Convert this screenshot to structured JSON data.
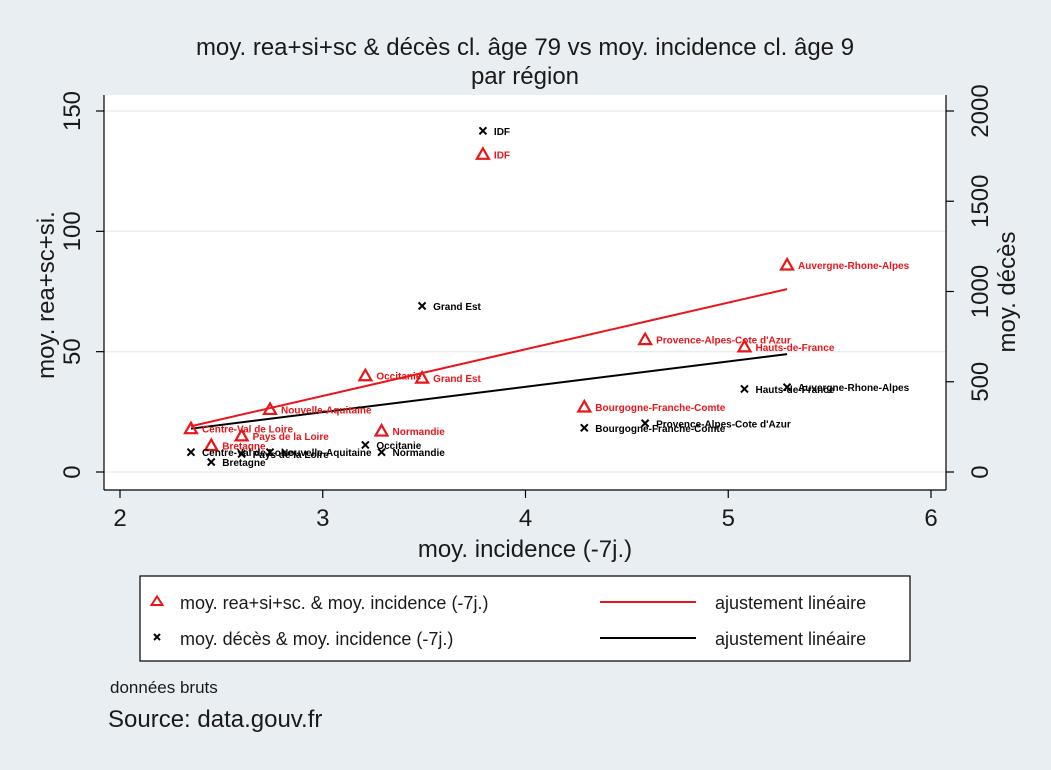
{
  "chart_data": {
    "type": "scatter",
    "title": "moy. rea+si+sc & décès cl. âge 79 vs moy. incidence cl. âge 9",
    "subtitle": "par région",
    "xlabel": "moy. incidence (-7j.)",
    "ylabel_left": "moy. rea+sc+si.",
    "ylabel_right": "moy. décès",
    "xlim": [
      2,
      6
    ],
    "x_ticks": [
      "2",
      "3",
      "4",
      "5",
      "6"
    ],
    "ylim_left": [
      0,
      150
    ],
    "y_ticks_left": [
      "0",
      "50",
      "100",
      "150"
    ],
    "ylim_right": [
      0,
      2000
    ],
    "y_ticks_right": [
      "0",
      "500",
      "1000",
      "1500",
      "2000"
    ],
    "grid": true,
    "legend_placement": "bottom",
    "series": [
      {
        "name": "moy. rea+si+sc. & moy. incidence (-7j.)",
        "axis": "left",
        "marker": "triangle",
        "color": "#e8161b",
        "points": [
          {
            "label": "IDF",
            "x": 3.79,
            "y": 132
          },
          {
            "label": "Auvergne-Rhone-Alpes",
            "x": 5.29,
            "y": 86
          },
          {
            "label": "Provence-Alpes-Cote d'Azur",
            "x": 4.59,
            "y": 55
          },
          {
            "label": "Hauts-de-France",
            "x": 5.08,
            "y": 52
          },
          {
            "label": "Occitanie",
            "x": 3.21,
            "y": 40
          },
          {
            "label": "Grand Est",
            "x": 3.49,
            "y": 39
          },
          {
            "label": "Bourgogne-Franche-Comte",
            "x": 4.29,
            "y": 27
          },
          {
            "label": "Nouvelle-Aquitaine",
            "x": 2.74,
            "y": 26
          },
          {
            "label": "Centre-Val de Loire",
            "x": 2.35,
            "y": 18
          },
          {
            "label": "Normandie",
            "x": 3.29,
            "y": 17
          },
          {
            "label": "Pays de la Loire",
            "x": 2.6,
            "y": 15
          },
          {
            "label": "Bretagne",
            "x": 2.45,
            "y": 11
          }
        ]
      },
      {
        "name": "moy. décès & moy. incidence (-7j.)",
        "axis": "right",
        "marker": "x",
        "color": "#000000",
        "points": [
          {
            "label": "IDF",
            "x": 3.79,
            "y": 1890
          },
          {
            "label": "Grand Est",
            "x": 3.49,
            "y": 920
          },
          {
            "label": "Hauts-de-France",
            "x": 5.08,
            "y": 460
          },
          {
            "label": "Auvergne-Rhone-Alpes",
            "x": 5.29,
            "y": 470
          },
          {
            "label": "Provence-Alpes-Cote d'Azur",
            "x": 4.59,
            "y": 270
          },
          {
            "label": "Bourgogne-Franche-Comte",
            "x": 4.29,
            "y": 245
          },
          {
            "label": "Occitanie",
            "x": 3.21,
            "y": 150
          },
          {
            "label": "Nouvelle-Aquitaine",
            "x": 2.74,
            "y": 110
          },
          {
            "label": "Centre-Val de Loire",
            "x": 2.35,
            "y": 110
          },
          {
            "label": "Normandie",
            "x": 3.29,
            "y": 110
          },
          {
            "label": "Pays de la Loire",
            "x": 2.6,
            "y": 100
          },
          {
            "label": "Bretagne",
            "x": 2.45,
            "y": 55
          }
        ]
      }
    ],
    "fits": [
      {
        "name": "ajustement linéaire",
        "axis": "left",
        "color": "#e8161b",
        "x": [
          2.35,
          5.29
        ],
        "y": [
          19,
          76
        ]
      },
      {
        "name": "ajustement linéaire",
        "axis": "left",
        "color": "#000000",
        "x": [
          2.35,
          5.29
        ],
        "y": [
          18,
          49
        ]
      }
    ],
    "notes": [
      "données bruts",
      "Source: data.gouv.fr"
    ]
  }
}
